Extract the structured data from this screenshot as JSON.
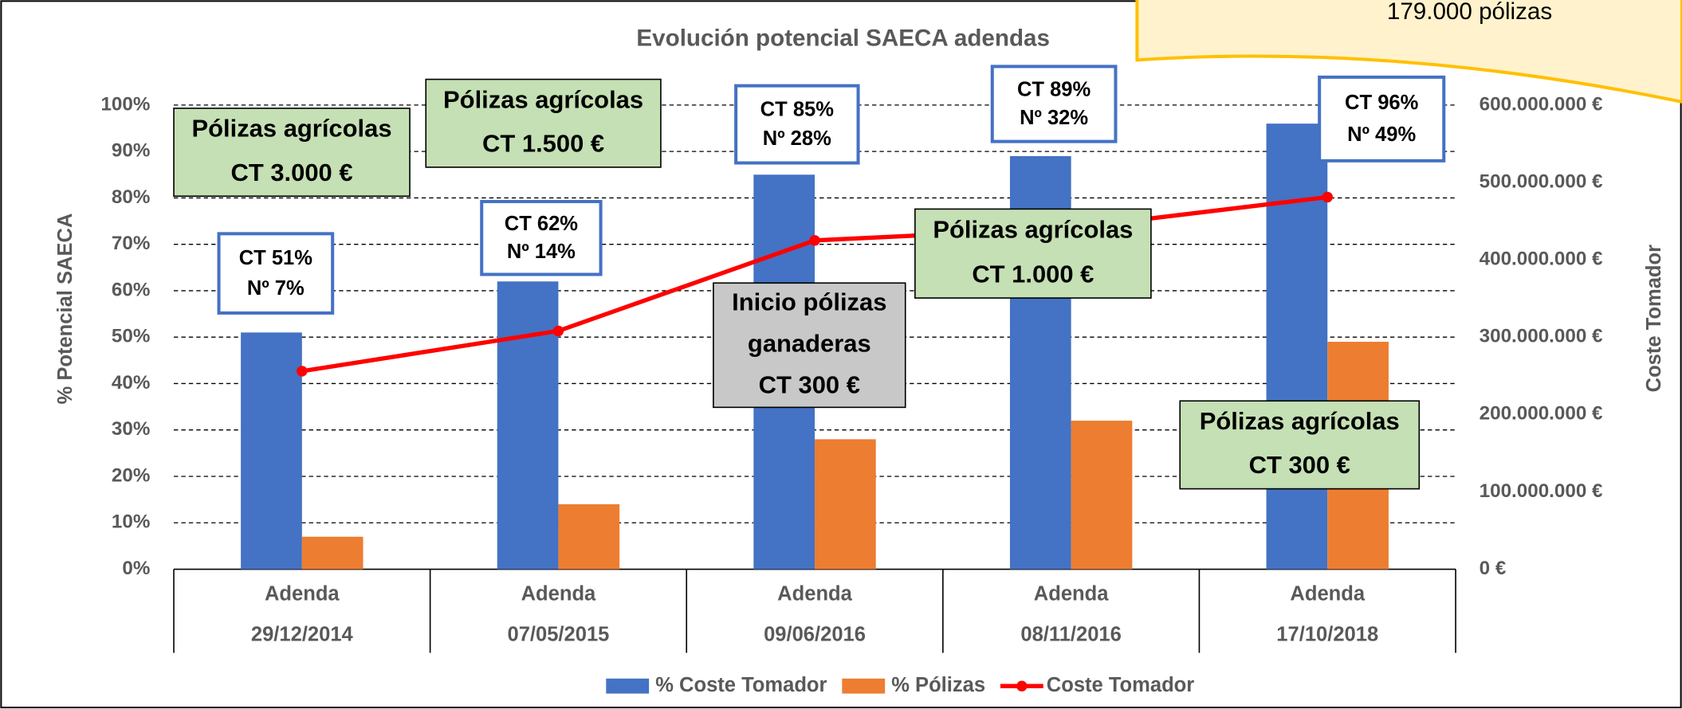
{
  "chart_data": {
    "type": "bar",
    "title": "Evolución potencial SAECA adendas",
    "y_label": "% Potencial SAECA",
    "y2_label": "Coste Tomador",
    "categories": [
      [
        "Adenda",
        "29/12/2014"
      ],
      [
        "Adenda",
        "07/05/2015"
      ],
      [
        "Adenda",
        "09/06/2016"
      ],
      [
        "Adenda",
        "08/11/2016"
      ],
      [
        "Adenda",
        "17/10/2018"
      ]
    ],
    "series": [
      {
        "name": "% Coste Tomador",
        "type": "bar",
        "color": "#4472c4",
        "values": [
          51,
          62,
          85,
          89,
          96
        ],
        "value_labels": [
          "CT 51%",
          "CT 62%",
          "CT 85%",
          "CT 89%",
          "CT 96%"
        ]
      },
      {
        "name": "% Pólizas",
        "type": "bar",
        "color": "#ed7d31",
        "values": [
          7,
          14,
          28,
          32,
          49
        ],
        "value_labels": [
          "Nº 7%",
          "Nº 14%",
          "Nº 28%",
          "Nº 32%",
          "Nº 49%"
        ]
      },
      {
        "name": "Coste Tomador",
        "type": "line",
        "axis": "y2",
        "color": "#ff0000",
        "values": [
          256000000,
          308000000,
          425000000,
          441000000,
          481000000
        ]
      }
    ],
    "ylim": [
      0,
      100
    ],
    "yticks": [
      {
        "value": 0,
        "label": "0%"
      },
      {
        "value": 10,
        "label": "10%"
      },
      {
        "value": 20,
        "label": "20%"
      },
      {
        "value": 30,
        "label": "30%"
      },
      {
        "value": 40,
        "label": "40%"
      },
      {
        "value": 50,
        "label": "50%"
      },
      {
        "value": 60,
        "label": "60%"
      },
      {
        "value": 70,
        "label": "70%"
      },
      {
        "value": 80,
        "label": "80%"
      },
      {
        "value": 90,
        "label": "90%"
      },
      {
        "value": 100,
        "label": "100%"
      }
    ],
    "y2lim": [
      0,
      600000000
    ],
    "y2ticks": [
      {
        "value": 0,
        "label": "0 €"
      },
      {
        "value": 100000000,
        "label": "100.000.000 €"
      },
      {
        "value": 200000000,
        "label": "200.000.000 €"
      },
      {
        "value": 300000000,
        "label": "300.000.000 €"
      },
      {
        "value": 400000000,
        "label": "400.000.000 €"
      },
      {
        "value": 500000000,
        "label": "500.000.000 €"
      },
      {
        "value": 600000000,
        "label": "600.000.000 €"
      }
    ],
    "grid": true,
    "legend": "bottom",
    "annotations": [
      [
        "Pólizas agrícolas",
        "CT 3.000 €"
      ],
      [
        "Pólizas agrícolas",
        "CT 1.500 €"
      ],
      [
        "Inicio pólizas",
        "ganaderas",
        "CT 300 €"
      ],
      [
        "Pólizas agrícolas",
        "CT 1.000 €"
      ],
      [
        "Pólizas agrícolas",
        "CT 300 €"
      ]
    ],
    "callout": "179.000 pólizas"
  }
}
